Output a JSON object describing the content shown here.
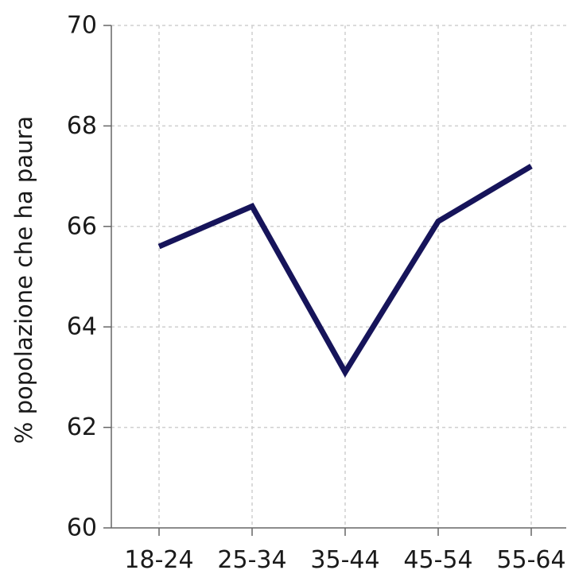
{
  "chart_data": {
    "type": "line",
    "categories": [
      "18-24",
      "25-34",
      "35-44",
      "45-54",
      "55-64"
    ],
    "series": [
      {
        "values": [
          65.6,
          66.4,
          63.1,
          66.1,
          67.2
        ],
        "color": "#16145a"
      }
    ],
    "ylabel": "% popolazione che ha paura",
    "xlabel": "",
    "ylim": [
      60,
      70
    ],
    "yticks": [
      60,
      62,
      64,
      66,
      68,
      70
    ],
    "grid": true,
    "legend": "none"
  }
}
